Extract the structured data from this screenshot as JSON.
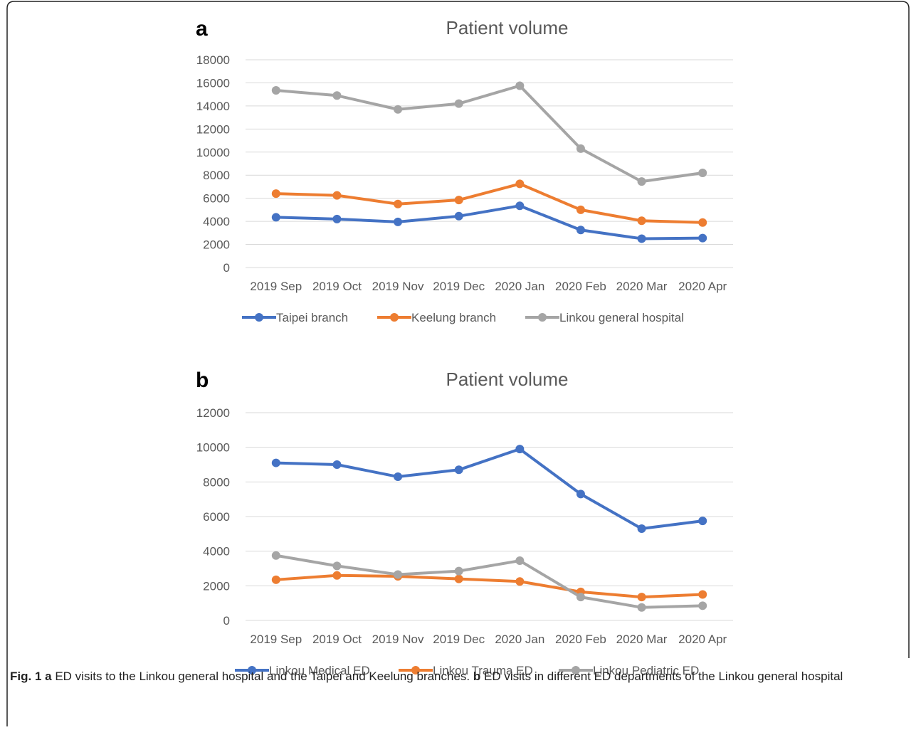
{
  "caption": {
    "figure_label": "Fig. 1",
    "part_a_letter": "a",
    "part_a_text": "ED visits to the Linkou general hospital and the Taipei and Keelung branches.",
    "part_b_letter": "b",
    "part_b_text": "ED visits in different ED departments of the Linkou general hospital"
  },
  "chart_data": [
    {
      "panel": "a",
      "type": "line",
      "title": "Patient volume",
      "categories": [
        "2019 Sep",
        "2019 Oct",
        "2019 Nov",
        "2019 Dec",
        "2020 Jan",
        "2020 Feb",
        "2020 Mar",
        "2020 Apr"
      ],
      "ylim": [
        0,
        18000
      ],
      "yticks": [
        0,
        2000,
        4000,
        6000,
        8000,
        10000,
        12000,
        14000,
        16000,
        18000
      ],
      "grid": true,
      "legend": "bottom",
      "series": [
        {
          "name": "Taipei branch",
          "color": "#4472C4",
          "values": [
            4350,
            4200,
            3950,
            4450,
            5350,
            3250,
            2500,
            2550
          ]
        },
        {
          "name": "Keelung branch",
          "color": "#ED7D31",
          "values": [
            6400,
            6250,
            5500,
            5850,
            7250,
            5000,
            4050,
            3900
          ]
        },
        {
          "name": "Linkou general hospital",
          "color": "#A5A5A5",
          "values": [
            15350,
            14900,
            13700,
            14200,
            15750,
            10300,
            7450,
            8200
          ]
        }
      ]
    },
    {
      "panel": "b",
      "type": "line",
      "title": "Patient volume",
      "categories": [
        "2019 Sep",
        "2019 Oct",
        "2019 Nov",
        "2019 Dec",
        "2020 Jan",
        "2020 Feb",
        "2020 Mar",
        "2020 Apr"
      ],
      "ylim": [
        0,
        12000
      ],
      "yticks": [
        0,
        2000,
        4000,
        6000,
        8000,
        10000,
        12000
      ],
      "grid": true,
      "legend": "bottom",
      "series": [
        {
          "name": "Linkou Medical ED",
          "color": "#4472C4",
          "values": [
            9100,
            9000,
            8300,
            8700,
            9900,
            7300,
            5300,
            5750
          ]
        },
        {
          "name": "Linkou Trauma ED",
          "color": "#ED7D31",
          "values": [
            2350,
            2600,
            2550,
            2400,
            2250,
            1650,
            1350,
            1500
          ]
        },
        {
          "name": "Linkou Pediatric ED",
          "color": "#A5A5A5",
          "values": [
            3750,
            3150,
            2650,
            2850,
            3450,
            1350,
            750,
            850
          ]
        }
      ]
    }
  ]
}
